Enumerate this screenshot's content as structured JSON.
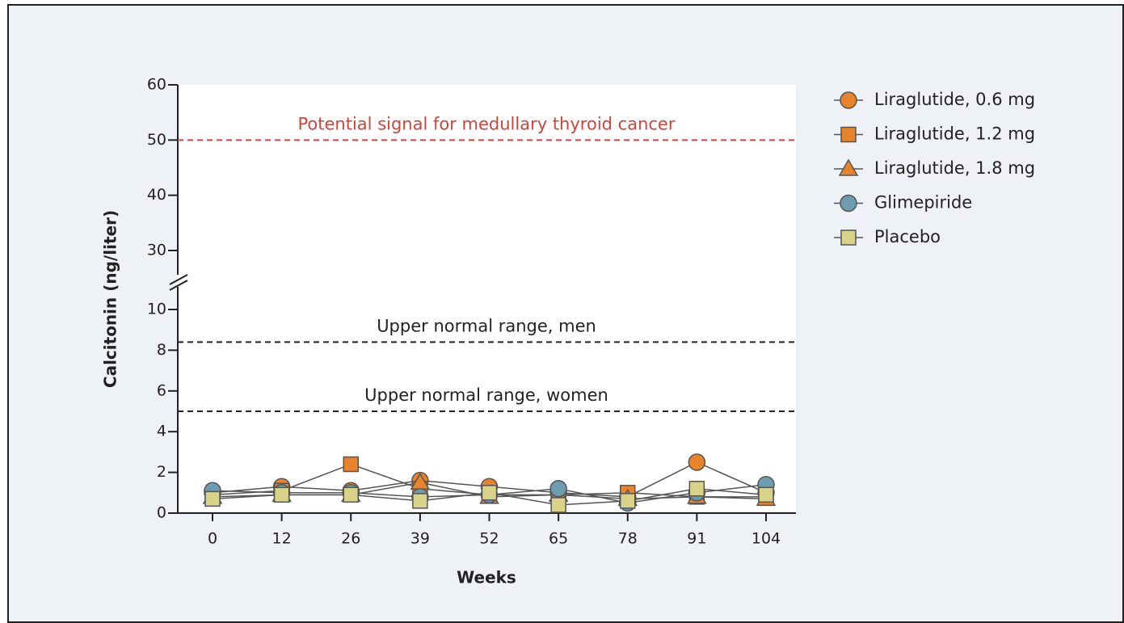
{
  "chart_data": {
    "type": "line",
    "ylabel": "Calcitonin (ng/liter)",
    "xlabel": "Weeks",
    "categories": [
      "0",
      "12",
      "26",
      "39",
      "52",
      "65",
      "78",
      "91",
      "104"
    ],
    "series": [
      {
        "name": "Liraglutide, 0.6 mg",
        "color": "#e8832a",
        "marker": "circle",
        "values": [
          1.0,
          1.3,
          1.1,
          1.6,
          1.3,
          1.0,
          0.8,
          2.5,
          1.0
        ]
      },
      {
        "name": "Liraglutide, 1.2 mg",
        "color": "#e8832a",
        "marker": "square",
        "values": [
          0.9,
          1.1,
          2.4,
          1.2,
          0.9,
          0.9,
          1.0,
          0.8,
          0.8
        ]
      },
      {
        "name": "Liraglutide, 1.8 mg",
        "color": "#e8832a",
        "marker": "triangle",
        "values": [
          0.8,
          0.9,
          0.9,
          1.5,
          0.8,
          0.9,
          0.7,
          0.8,
          0.7
        ]
      },
      {
        "name": "Glimepiride",
        "color": "#6b9cb0",
        "marker": "circle",
        "values": [
          1.1,
          1.0,
          1.0,
          0.8,
          0.9,
          1.2,
          0.5,
          1.0,
          1.4
        ]
      },
      {
        "name": "Placebo",
        "color": "#d9d38a",
        "marker": "square",
        "values": [
          0.7,
          0.9,
          0.9,
          0.6,
          1.0,
          0.4,
          0.6,
          1.2,
          0.9
        ]
      }
    ],
    "ylim": [
      0,
      60
    ],
    "ybreak": [
      10,
      30
    ],
    "yticks": [
      0,
      2,
      4,
      6,
      8,
      10,
      30,
      40,
      50,
      60
    ],
    "reference_lines": [
      {
        "value": 50,
        "label": "Potential signal for medullary thyroid cancer",
        "color": "#d0443c"
      },
      {
        "value": 8.4,
        "label": "Upper normal range, men",
        "color": "#222222"
      },
      {
        "value": 5.0,
        "label": "Upper normal range, women",
        "color": "#222222"
      }
    ],
    "legend": "right"
  }
}
